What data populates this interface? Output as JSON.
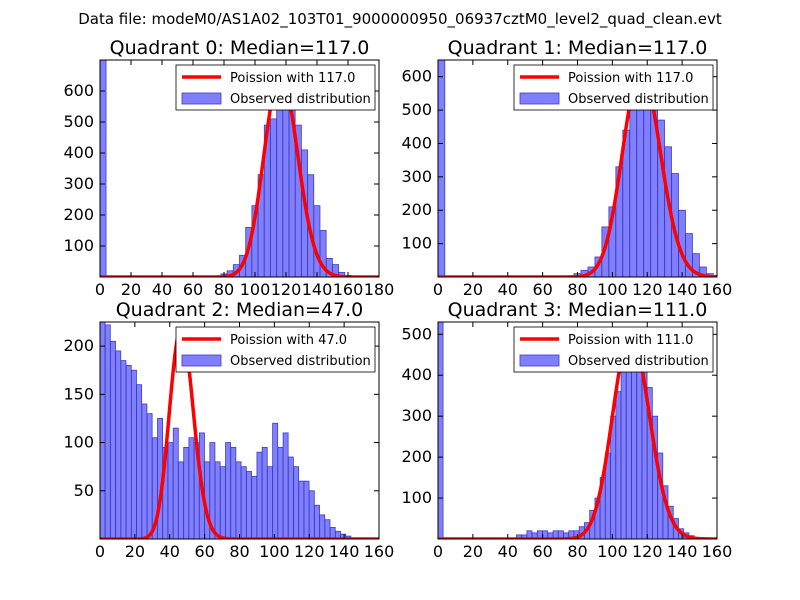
{
  "figure_title": "Data file: modeM0/AS1A02_103T01_9000000950_06937cztM0_level2_quad_clean.evt",
  "colors": {
    "hist_fill": "#7f7fff",
    "hist_edge": "#3c3cbe",
    "curve": "#ff0000",
    "axis": "#000000"
  },
  "chart_data": [
    {
      "type": "bar",
      "title": "Quadrant 0: Median=117.0",
      "legend": [
        "Poission with 117.0",
        "Observed distribution"
      ],
      "legend_position": "top-right",
      "xlim": [
        0,
        180
      ],
      "ylim": [
        0,
        700
      ],
      "xticks": [
        0,
        20,
        40,
        60,
        80,
        100,
        120,
        140,
        160,
        180
      ],
      "yticks": [
        100,
        200,
        300,
        400,
        500,
        600
      ],
      "bin_width": 3.9,
      "bins": [
        [
          0,
          700
        ],
        [
          78,
          10
        ],
        [
          82,
          20
        ],
        [
          86,
          40
        ],
        [
          90,
          70
        ],
        [
          94,
          160
        ],
        [
          98,
          230
        ],
        [
          102,
          330
        ],
        [
          106,
          490
        ],
        [
          110,
          510
        ],
        [
          114,
          590
        ],
        [
          118,
          620
        ],
        [
          122,
          640
        ],
        [
          126,
          490
        ],
        [
          130,
          410
        ],
        [
          134,
          330
        ],
        [
          138,
          230
        ],
        [
          142,
          150
        ],
        [
          146,
          60
        ],
        [
          150,
          40
        ],
        [
          154,
          15
        ],
        [
          158,
          5
        ],
        [
          162,
          2
        ]
      ],
      "poisson_mean": 117,
      "poisson_scale": 655
    },
    {
      "type": "bar",
      "title": "Quadrant 1: Median=117.0",
      "legend": [
        "Poission with 117.0",
        "Observed distribution"
      ],
      "legend_position": "top-right",
      "xlim": [
        0,
        160
      ],
      "ylim": [
        0,
        650
      ],
      "xticks": [
        0,
        20,
        40,
        60,
        80,
        100,
        120,
        140,
        160
      ],
      "yticks": [
        100,
        200,
        300,
        400,
        500,
        600
      ],
      "bin_width": 3.9,
      "bins": [
        [
          0,
          650
        ],
        [
          78,
          10
        ],
        [
          82,
          20
        ],
        [
          86,
          30
        ],
        [
          90,
          60
        ],
        [
          94,
          150
        ],
        [
          98,
          210
        ],
        [
          102,
          330
        ],
        [
          106,
          440
        ],
        [
          110,
          520
        ],
        [
          114,
          590
        ],
        [
          118,
          630
        ],
        [
          122,
          600
        ],
        [
          126,
          470
        ],
        [
          130,
          390
        ],
        [
          134,
          310
        ],
        [
          138,
          200
        ],
        [
          142,
          130
        ],
        [
          146,
          70
        ],
        [
          150,
          30
        ],
        [
          154,
          10
        ],
        [
          158,
          5
        ]
      ],
      "poisson_mean": 117,
      "poisson_scale": 620
    },
    {
      "type": "bar",
      "title": "Quadrant 2: Median=47.0",
      "legend": [
        "Poission with 47.0",
        "Observed distribution"
      ],
      "legend_position": "top-right",
      "xlim": [
        0,
        160
      ],
      "ylim": [
        0,
        225
      ],
      "xticks": [
        0,
        20,
        40,
        60,
        80,
        100,
        120,
        140,
        160
      ],
      "yticks": [
        50,
        100,
        150,
        200
      ],
      "bin_width": 2.9,
      "bins": [
        [
          0,
          225
        ],
        [
          3,
          222
        ],
        [
          6,
          205
        ],
        [
          9,
          195
        ],
        [
          12,
          185
        ],
        [
          15,
          180
        ],
        [
          18,
          175
        ],
        [
          21,
          160
        ],
        [
          24,
          140
        ],
        [
          27,
          130
        ],
        [
          30,
          105
        ],
        [
          33,
          125
        ],
        [
          36,
          95
        ],
        [
          39,
          100
        ],
        [
          42,
          115
        ],
        [
          45,
          80
        ],
        [
          48,
          95
        ],
        [
          51,
          105
        ],
        [
          54,
          100
        ],
        [
          57,
          110
        ],
        [
          60,
          80
        ],
        [
          63,
          100
        ],
        [
          66,
          80
        ],
        [
          69,
          75
        ],
        [
          72,
          100
        ],
        [
          75,
          95
        ],
        [
          78,
          80
        ],
        [
          81,
          75
        ],
        [
          84,
          70
        ],
        [
          87,
          65
        ],
        [
          90,
          90
        ],
        [
          93,
          95
        ],
        [
          96,
          75
        ],
        [
          99,
          120
        ],
        [
          102,
          95
        ],
        [
          105,
          110
        ],
        [
          108,
          85
        ],
        [
          111,
          75
        ],
        [
          114,
          60
        ],
        [
          117,
          60
        ],
        [
          120,
          50
        ],
        [
          123,
          35
        ],
        [
          126,
          25
        ],
        [
          129,
          20
        ],
        [
          132,
          12
        ],
        [
          135,
          8
        ],
        [
          138,
          5
        ],
        [
          141,
          3
        ]
      ],
      "poisson_mean": 47,
      "poisson_scale": 218
    },
    {
      "type": "bar",
      "title": "Quadrant 3: Median=111.0",
      "legend": [
        "Poission with 111.0",
        "Observed distribution"
      ],
      "legend_position": "top-right",
      "xlim": [
        0,
        160
      ],
      "ylim": [
        0,
        530
      ],
      "xticks": [
        0,
        20,
        40,
        60,
        80,
        100,
        120,
        140,
        160
      ],
      "yticks": [
        100,
        200,
        300,
        400,
        500
      ],
      "bin_width": 2.9,
      "bins": [
        [
          0,
          530
        ],
        [
          45,
          10
        ],
        [
          48,
          10
        ],
        [
          51,
          20
        ],
        [
          54,
          15
        ],
        [
          57,
          20
        ],
        [
          60,
          20
        ],
        [
          63,
          15
        ],
        [
          66,
          20
        ],
        [
          69,
          20
        ],
        [
          72,
          15
        ],
        [
          75,
          20
        ],
        [
          78,
          20
        ],
        [
          81,
          30
        ],
        [
          84,
          40
        ],
        [
          87,
          70
        ],
        [
          90,
          100
        ],
        [
          93,
          150
        ],
        [
          96,
          210
        ],
        [
          99,
          300
        ],
        [
          102,
          360
        ],
        [
          105,
          420
        ],
        [
          108,
          480
        ],
        [
          111,
          490
        ],
        [
          114,
          500
        ],
        [
          117,
          440
        ],
        [
          120,
          370
        ],
        [
          123,
          300
        ],
        [
          126,
          210
        ],
        [
          129,
          130
        ],
        [
          132,
          80
        ],
        [
          135,
          50
        ],
        [
          138,
          25
        ],
        [
          141,
          15
        ],
        [
          144,
          8
        ],
        [
          147,
          4
        ]
      ],
      "poisson_mean": 111,
      "poisson_scale": 500
    }
  ]
}
